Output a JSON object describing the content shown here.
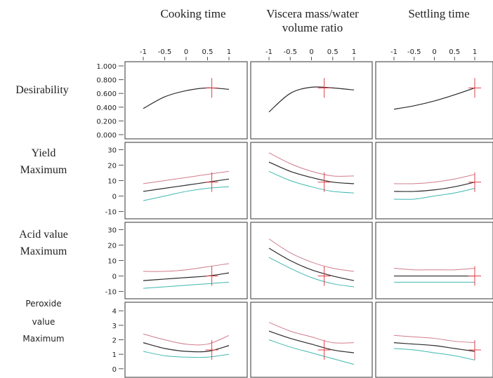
{
  "chart_data": {
    "type": "line",
    "columns": [
      {
        "title_lines": [
          "Cooking time"
        ],
        "x_ticks": [
          "-1",
          "-0.5",
          "0",
          "0.5",
          "1"
        ],
        "xlim": [
          -1,
          1
        ],
        "current_x": 0.6
      },
      {
        "title_lines": [
          "Viscera mass/water",
          "volume ratio"
        ],
        "x_ticks": [
          "-1",
          "-0.5",
          "0",
          "0.5",
          "1"
        ],
        "xlim": [
          -1,
          1
        ],
        "current_x": 0.3
      },
      {
        "title_lines": [
          "Settling time"
        ],
        "x_ticks": [
          "-1",
          "-0.5",
          "0",
          "0.5",
          "1"
        ],
        "xlim": [
          -1,
          1
        ],
        "current_x": 1.0
      }
    ],
    "rows": [
      {
        "label_lines": [
          "Desirability"
        ],
        "label_style": "serif",
        "y_ticks": [
          "1.000",
          "0.800",
          "0.600",
          "0.400",
          "0.200",
          "0.000"
        ],
        "ylim": [
          0,
          1
        ],
        "current_y": 0.68,
        "cells": [
          {
            "x": [
              -1,
              -0.5,
              0,
              0.5,
              1
            ],
            "y": [
              0.38,
              0.55,
              0.64,
              0.68,
              0.66
            ]
          },
          {
            "x": [
              -1,
              -0.5,
              0,
              0.5,
              1
            ],
            "y": [
              0.33,
              0.6,
              0.69,
              0.68,
              0.65
            ]
          },
          {
            "x": [
              -1,
              -0.5,
              0,
              0.5,
              1
            ],
            "y": [
              0.37,
              0.42,
              0.49,
              0.58,
              0.68
            ]
          }
        ]
      },
      {
        "label_lines": [
          "Yield",
          "Maximum"
        ],
        "label_style": "serif",
        "y_ticks": [
          "30",
          "20",
          "10",
          "0",
          "-10"
        ],
        "ylim": [
          -12,
          32
        ],
        "current_y": 9,
        "cells": [
          {
            "x": [
              -1,
              -0.5,
              0,
              0.5,
              1
            ],
            "y": [
              3,
              5,
              7,
              9,
              11
            ],
            "lower": [
              -3,
              0,
              3,
              5,
              6
            ],
            "upper": [
              8,
              10,
              12,
              14,
              16
            ]
          },
          {
            "x": [
              -1,
              -0.5,
              0,
              0.5,
              1
            ],
            "y": [
              22,
              16,
              12,
              9,
              8
            ],
            "lower": [
              16,
              10,
              6,
              3,
              2
            ],
            "upper": [
              28,
              21,
              16,
              13,
              13
            ]
          },
          {
            "x": [
              -1,
              -0.5,
              0,
              0.5,
              1
            ],
            "y": [
              3,
              3,
              4,
              6,
              9
            ],
            "lower": [
              -2,
              -2,
              0,
              2,
              5
            ],
            "upper": [
              8,
              8,
              9,
              11,
              14
            ]
          }
        ]
      },
      {
        "label_lines": [
          "Acid value",
          "Maximum"
        ],
        "label_style": "serif",
        "y_ticks": [
          "30",
          "20",
          "10",
          "0",
          "-10"
        ],
        "ylim": [
          -12,
          32
        ],
        "current_y": 0,
        "cells": [
          {
            "x": [
              -1,
              -0.5,
              0,
              0.5,
              1
            ],
            "y": [
              -3,
              -2,
              -1,
              0,
              2
            ],
            "lower": [
              -8,
              -7,
              -6,
              -5,
              -4
            ],
            "upper": [
              3,
              3,
              4,
              6,
              8
            ]
          },
          {
            "x": [
              -1,
              -0.5,
              0,
              0.5,
              1
            ],
            "y": [
              18,
              10,
              4,
              0,
              -3
            ],
            "lower": [
              12,
              5,
              -1,
              -5,
              -7
            ],
            "upper": [
              24,
              15,
              9,
              5,
              3
            ]
          },
          {
            "x": [
              -1,
              -0.5,
              0,
              0.5,
              1
            ],
            "y": [
              0,
              0,
              0,
              0,
              0
            ],
            "lower": [
              -4,
              -4,
              -4,
              -4,
              -4
            ],
            "upper": [
              5,
              4,
              4,
              4,
              5
            ]
          }
        ]
      },
      {
        "label_lines": [
          "Peroxide",
          "value",
          "Maximum"
        ],
        "label_style": "sans",
        "y_ticks": [
          "4",
          "3",
          "2",
          "1",
          "0"
        ],
        "ylim": [
          -0.3,
          4.3
        ],
        "current_y": 1.3,
        "cells": [
          {
            "x": [
              -1,
              -0.5,
              0,
              0.5,
              1
            ],
            "y": [
              1.8,
              1.4,
              1.2,
              1.2,
              1.6
            ],
            "lower": [
              1.2,
              0.9,
              0.8,
              0.8,
              1.0
            ],
            "upper": [
              2.4,
              2.0,
              1.7,
              1.7,
              2.3
            ]
          },
          {
            "x": [
              -1,
              -0.5,
              0,
              0.5,
              1
            ],
            "y": [
              2.6,
              2.1,
              1.7,
              1.3,
              1.1
            ],
            "lower": [
              2.0,
              1.5,
              1.1,
              0.7,
              0.3
            ],
            "upper": [
              3.2,
              2.6,
              2.2,
              1.8,
              1.8
            ]
          },
          {
            "x": [
              -1,
              -0.5,
              0,
              0.5,
              1
            ],
            "y": [
              1.8,
              1.7,
              1.6,
              1.4,
              1.2
            ],
            "lower": [
              1.4,
              1.3,
              1.1,
              0.9,
              0.6
            ],
            "upper": [
              2.3,
              2.2,
              2.1,
              1.9,
              1.8
            ]
          }
        ]
      }
    ]
  },
  "colors": {
    "curve": "#2b2b2b",
    "interval": "#3fb8b0",
    "interval_alt": "#d07c8c",
    "current": "#e04048",
    "frame": "#555555",
    "text": "#222222"
  }
}
